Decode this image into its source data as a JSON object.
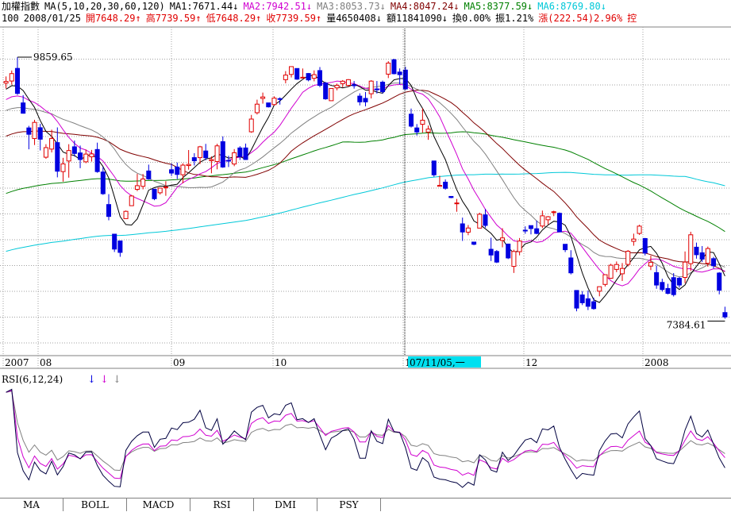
{
  "header": {
    "line1": [
      {
        "text": "加權指數",
        "color": "#000000"
      },
      {
        "text": "MA(5,10,20,30,60,120)",
        "color": "#000000"
      },
      {
        "text": "MA1:7671.44↓",
        "color": "#000000"
      },
      {
        "text": "MA2:7942.51↓",
        "color": "#d000d0"
      },
      {
        "text": "MA3:8053.73↓",
        "color": "#808080"
      },
      {
        "text": "MA4:8047.24↓",
        "color": "#800000"
      },
      {
        "text": "MA5:8377.59↓",
        "color": "#008000"
      },
      {
        "text": "MA6:8769.80↓",
        "color": "#00c8d8"
      }
    ],
    "line2": [
      {
        "text": "100",
        "color": "#000000"
      },
      {
        "text": "2008/01/25",
        "color": "#000000"
      },
      {
        "text": "開7648.29↑",
        "color": "#e00000"
      },
      {
        "text": "高7739.59↑",
        "color": "#e00000"
      },
      {
        "text": "低7648.29↑",
        "color": "#e00000"
      },
      {
        "text": "收7739.59↑",
        "color": "#e00000"
      },
      {
        "text": "量4650408↓",
        "color": "#000000"
      },
      {
        "text": "額11841090↓",
        "color": "#000000"
      },
      {
        "text": "換0.00%",
        "color": "#000000"
      },
      {
        "text": "振1.21%",
        "color": "#000000"
      },
      {
        "text": "漲(222.54)2.96%",
        "color": "#e00000"
      },
      {
        "text": "控",
        "color": "#e00000"
      }
    ]
  },
  "chart_data": [
    {
      "type": "candlestick",
      "title": "加權指數",
      "x_ticks": [
        "2007",
        "08",
        "09",
        "10",
        "11",
        "12",
        "2008"
      ],
      "cursor_label": "07/11/05,一",
      "annotations": {
        "high": "9859.65",
        "low": "7384.61"
      },
      "ylim": [
        7150,
        10150
      ],
      "grid": true,
      "colors": {
        "up": "#e00000",
        "down": "#0000e0",
        "ma1": "#000000",
        "ma2": "#d000d0",
        "ma3": "#808080",
        "ma4": "#800000",
        "ma5": "#008000",
        "ma6": "#00c8d8"
      },
      "ohlc": [
        [
          9627,
          9691,
          9576,
          9643
        ],
        [
          9647,
          9748,
          9612,
          9718
        ],
        [
          9768,
          9876,
          9514,
          9528
        ],
        [
          9437,
          9512,
          9334,
          9338
        ],
        [
          9197,
          9217,
          8992,
          9136
        ],
        [
          9095,
          9275,
          9033,
          9250
        ],
        [
          9199,
          9237,
          8981,
          9089
        ],
        [
          8916,
          9041,
          8901,
          9008
        ],
        [
          8994,
          9180,
          8962,
          9096
        ],
        [
          9056,
          9202,
          8723,
          8782
        ],
        [
          8778,
          8910,
          8682,
          8852
        ],
        [
          8880,
          9041,
          8720,
          8980
        ],
        [
          9016,
          9076,
          8922,
          8952
        ],
        [
          8957,
          9028,
          8811,
          8894
        ],
        [
          8872,
          8990,
          8859,
          8946
        ],
        [
          8920,
          8986,
          8874,
          8948
        ],
        [
          8990,
          9056,
          8767,
          8778
        ],
        [
          8774,
          8822,
          8555,
          8566
        ],
        [
          8462,
          8562,
          8311,
          8348
        ],
        [
          8178,
          8178,
          8007,
          8035
        ],
        [
          8113,
          8113,
          7961,
          8003
        ],
        [
          8327,
          8405,
          8327,
          8397
        ],
        [
          8451,
          8554,
          8451,
          8544
        ],
        [
          8608,
          8756,
          8591,
          8643
        ],
        [
          8637,
          8755,
          8608,
          8707
        ],
        [
          8784,
          8845,
          8701,
          8708
        ],
        [
          8609,
          8612,
          8504,
          8518
        ],
        [
          8575,
          8624,
          8558,
          8620
        ],
        [
          8623,
          8686,
          8546,
          8630
        ],
        [
          8796,
          8856,
          8736,
          8764
        ],
        [
          8822,
          8865,
          8707,
          8751
        ],
        [
          8748,
          8858,
          8666,
          8840
        ],
        [
          8836,
          8985,
          8797,
          8847
        ],
        [
          8912,
          8955,
          8837,
          8882
        ],
        [
          8912,
          9025,
          8851,
          9016
        ],
        [
          8976,
          9044,
          8887,
          8911
        ],
        [
          8883,
          8924,
          8762,
          8894
        ],
        [
          8875,
          9045,
          8800,
          9025
        ],
        [
          9065,
          9116,
          8814,
          8822
        ],
        [
          8886,
          8930,
          8822,
          8883
        ],
        [
          8851,
          8994,
          8830,
          8959
        ],
        [
          9005,
          9022,
          8890,
          8923
        ],
        [
          9005,
          9047,
          8890,
          8894
        ],
        [
          9160,
          9322,
          9150,
          9282
        ],
        [
          9343,
          9468,
          9326,
          9425
        ],
        [
          9480,
          9536,
          9430,
          9494
        ],
        [
          9437,
          9437,
          9393,
          9399
        ],
        [
          9421,
          9500,
          9412,
          9483
        ],
        [
          9478,
          9490,
          9421,
          9476
        ],
        [
          9660,
          9742,
          9625,
          9704
        ],
        [
          9710,
          9786,
          9681,
          9785
        ],
        [
          9767,
          9767,
          9658,
          9665
        ],
        [
          9682,
          9767,
          9673,
          9683
        ],
        [
          9719,
          9724,
          9644,
          9658
        ],
        [
          9673,
          9749,
          9644,
          9708
        ],
        [
          9747,
          9781,
          9588,
          9605
        ],
        [
          9628,
          9639,
          9467,
          9476
        ],
        [
          9458,
          9575,
          9458,
          9575
        ],
        [
          9581,
          9622,
          9558,
          9606
        ],
        [
          9622,
          9656,
          9587,
          9645
        ],
        [
          9605,
          9665,
          9592,
          9660
        ],
        [
          9611,
          9647,
          9574,
          9602
        ],
        [
          9502,
          9529,
          9413,
          9447
        ],
        [
          9480,
          9542,
          9404,
          9447
        ],
        [
          9525,
          9655,
          9480,
          9646
        ],
        [
          9571,
          9647,
          9527,
          9563
        ],
        [
          9636,
          9651,
          9527,
          9545
        ],
        [
          9713,
          9837,
          9675,
          9819
        ],
        [
          9851,
          9860,
          9711,
          9717
        ],
        [
          9733,
          9768,
          9614,
          9708
        ],
        [
          9752,
          9784,
          9561,
          9571
        ],
        [
          9329,
          9383,
          9201,
          9214
        ],
        [
          9197,
          9234,
          9124,
          9158
        ],
        [
          9232,
          9385,
          9152,
          9271
        ],
        [
          9157,
          9220,
          9083,
          9186
        ],
        [
          8880,
          8880,
          8729,
          8747
        ],
        [
          8637,
          8738,
          8637,
          8646
        ],
        [
          8677,
          8703,
          8605,
          8618
        ],
        [
          8540,
          8540,
          8523,
          8529
        ],
        [
          8471,
          8516,
          8393,
          8477
        ],
        [
          8277,
          8337,
          8113,
          8199
        ],
        [
          8197,
          8266,
          8168,
          8237
        ],
        [
          8102,
          8102,
          8072,
          8081
        ],
        [
          8236,
          8384,
          8236,
          8369
        ],
        [
          8363,
          8419,
          8241,
          8262
        ],
        [
          8033,
          8144,
          7920,
          7978
        ],
        [
          8012,
          8026,
          7901,
          7910
        ],
        [
          8118,
          8235,
          8052,
          8142
        ],
        [
          8083,
          8087,
          7939,
          7950
        ],
        [
          7869,
          8029,
          7806,
          8012
        ],
        [
          8010,
          8141,
          7975,
          8112
        ],
        [
          8216,
          8253,
          8182,
          8210
        ],
        [
          8260,
          8254,
          8176,
          8232
        ],
        [
          8230,
          8308,
          8177,
          8185
        ],
        [
          8256,
          8404,
          8236,
          8354
        ],
        [
          8316,
          8352,
          8270,
          8345
        ],
        [
          8393,
          8403,
          8351,
          8393
        ],
        [
          8378,
          8386,
          8201,
          8200
        ],
        [
          8081,
          8081,
          8006,
          8029
        ],
        [
          7950,
          8024,
          7792,
          7807
        ],
        [
          7638,
          7638,
          7438,
          7469
        ],
        [
          7595,
          7632,
          7498,
          7520
        ],
        [
          7558,
          7638,
          7450,
          7486
        ],
        [
          7530,
          7569,
          7453,
          7464
        ],
        [
          7631,
          7669,
          7582,
          7674
        ],
        [
          7696,
          7789,
          7676,
          7789
        ],
        [
          7755,
          7894,
          7749,
          7880
        ],
        [
          7840,
          7916,
          7814,
          7887
        ],
        [
          7798,
          7901,
          7729,
          7849
        ],
        [
          7888,
          8026,
          7869,
          8014
        ],
        [
          8109,
          8183,
          8067,
          8131
        ],
        [
          8185,
          8268,
          8171,
          8255
        ],
        [
          8136,
          8142,
          7974,
          7997
        ],
        [
          7872,
          7972,
          7833,
          7908
        ],
        [
          7809,
          7878,
          7654,
          7690
        ],
        [
          7715,
          7750,
          7628,
          7647
        ],
        [
          7657,
          7702,
          7601,
          7610
        ],
        [
          7761,
          7805,
          7580,
          7598
        ],
        [
          7755,
          7769,
          7665,
          7690
        ],
        [
          7763,
          8012,
          7708,
          7910
        ],
        [
          7895,
          8201,
          7825,
          8172
        ],
        [
          8053,
          8097,
          7943,
          7981
        ],
        [
          7999,
          8064,
          7911,
          7939
        ],
        [
          7899,
          8059,
          7866,
          8040
        ],
        [
          7943,
          7960,
          7849,
          7875
        ],
        [
          7805,
          7814,
          7601,
          7640
        ],
        [
          7426,
          7482,
          7367,
          7384
        ]
      ]
    },
    {
      "type": "line",
      "title": "RSI(6,12,24)",
      "series": [
        {
          "name": "RSI6",
          "color": "#000040"
        },
        {
          "name": "RSI12",
          "color": "#d000d0"
        },
        {
          "name": "RSI24",
          "color": "#808080"
        }
      ],
      "ylim": [
        0,
        100
      ]
    }
  ],
  "rsi_title": "RSI(6,12,24)",
  "rsi_arrows": [
    {
      "text": "↓",
      "color": "#0000e0"
    },
    {
      "text": "↓",
      "color": "#d000d0"
    },
    {
      "text": "↓",
      "color": "#808080"
    }
  ],
  "tabs": [
    "MA",
    "BOLL",
    "MACD",
    "RSI",
    "DMI",
    "PSY"
  ]
}
